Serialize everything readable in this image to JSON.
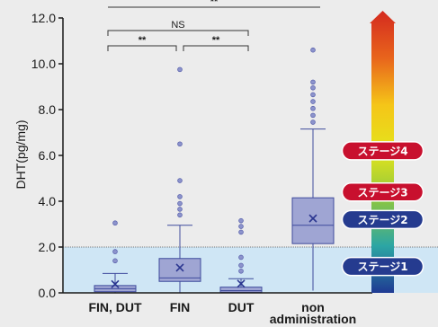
{
  "chart_data": {
    "type": "box",
    "ylabel": "DHT(pg/mg)",
    "ylim": [
      0,
      12
    ],
    "yticks": [
      "0.0",
      "2.0",
      "4.0",
      "6.0",
      "8.0",
      "10.0",
      "12.0"
    ],
    "reference_band": [
      0,
      2
    ],
    "groups": [
      {
        "label": "FIN, DUT",
        "q1": 0.05,
        "median": 0.18,
        "q3": 0.32,
        "whisker_low": 0.0,
        "whisker_high": 0.85,
        "mean": 0.38,
        "outliers": [
          1.4,
          1.8,
          3.05
        ]
      },
      {
        "label": "FIN",
        "q1": 0.5,
        "median": 0.65,
        "q3": 1.5,
        "whisker_low": 0.0,
        "whisker_high": 2.95,
        "mean": 1.1,
        "outliers": [
          3.4,
          3.65,
          3.9,
          4.2,
          4.9,
          6.5,
          9.75
        ]
      },
      {
        "label": "DUT",
        "q1": 0.03,
        "median": 0.1,
        "q3": 0.25,
        "whisker_low": 0.0,
        "whisker_high": 0.62,
        "mean": 0.4,
        "outliers": [
          0.95,
          1.2,
          1.55,
          2.65,
          2.9,
          3.15
        ]
      },
      {
        "label": "non\nadministration",
        "q1": 2.15,
        "median": 2.95,
        "q3": 4.15,
        "whisker_low": 0.1,
        "whisker_high": 7.15,
        "mean": 3.25,
        "outliers": [
          7.45,
          7.75,
          8.05,
          8.35,
          8.65,
          8.95,
          9.2,
          10.6
        ]
      }
    ],
    "brackets": [
      {
        "from": 0,
        "to": 3,
        "label": "**"
      },
      {
        "from": 0,
        "to": 2,
        "label": "NS"
      },
      {
        "from": 0,
        "to": 1,
        "label": "**"
      },
      {
        "from": 1,
        "to": 2,
        "label": "**"
      }
    ],
    "stages": [
      {
        "label": "ステージ4",
        "level": 6.2,
        "color": "#c8102e"
      },
      {
        "label": "ステージ3",
        "level": 4.4,
        "color": "#c8102e"
      },
      {
        "label": "ステージ2",
        "level": 3.2,
        "color": "#253b8f"
      },
      {
        "label": "ステージ1",
        "level": 1.15,
        "color": "#253b8f"
      }
    ],
    "gradient_colors": [
      "#d42a1f",
      "#e8641c",
      "#f5c518",
      "#e4e41c",
      "#8cc63f",
      "#2ca6a4",
      "#1f3a93"
    ]
  }
}
